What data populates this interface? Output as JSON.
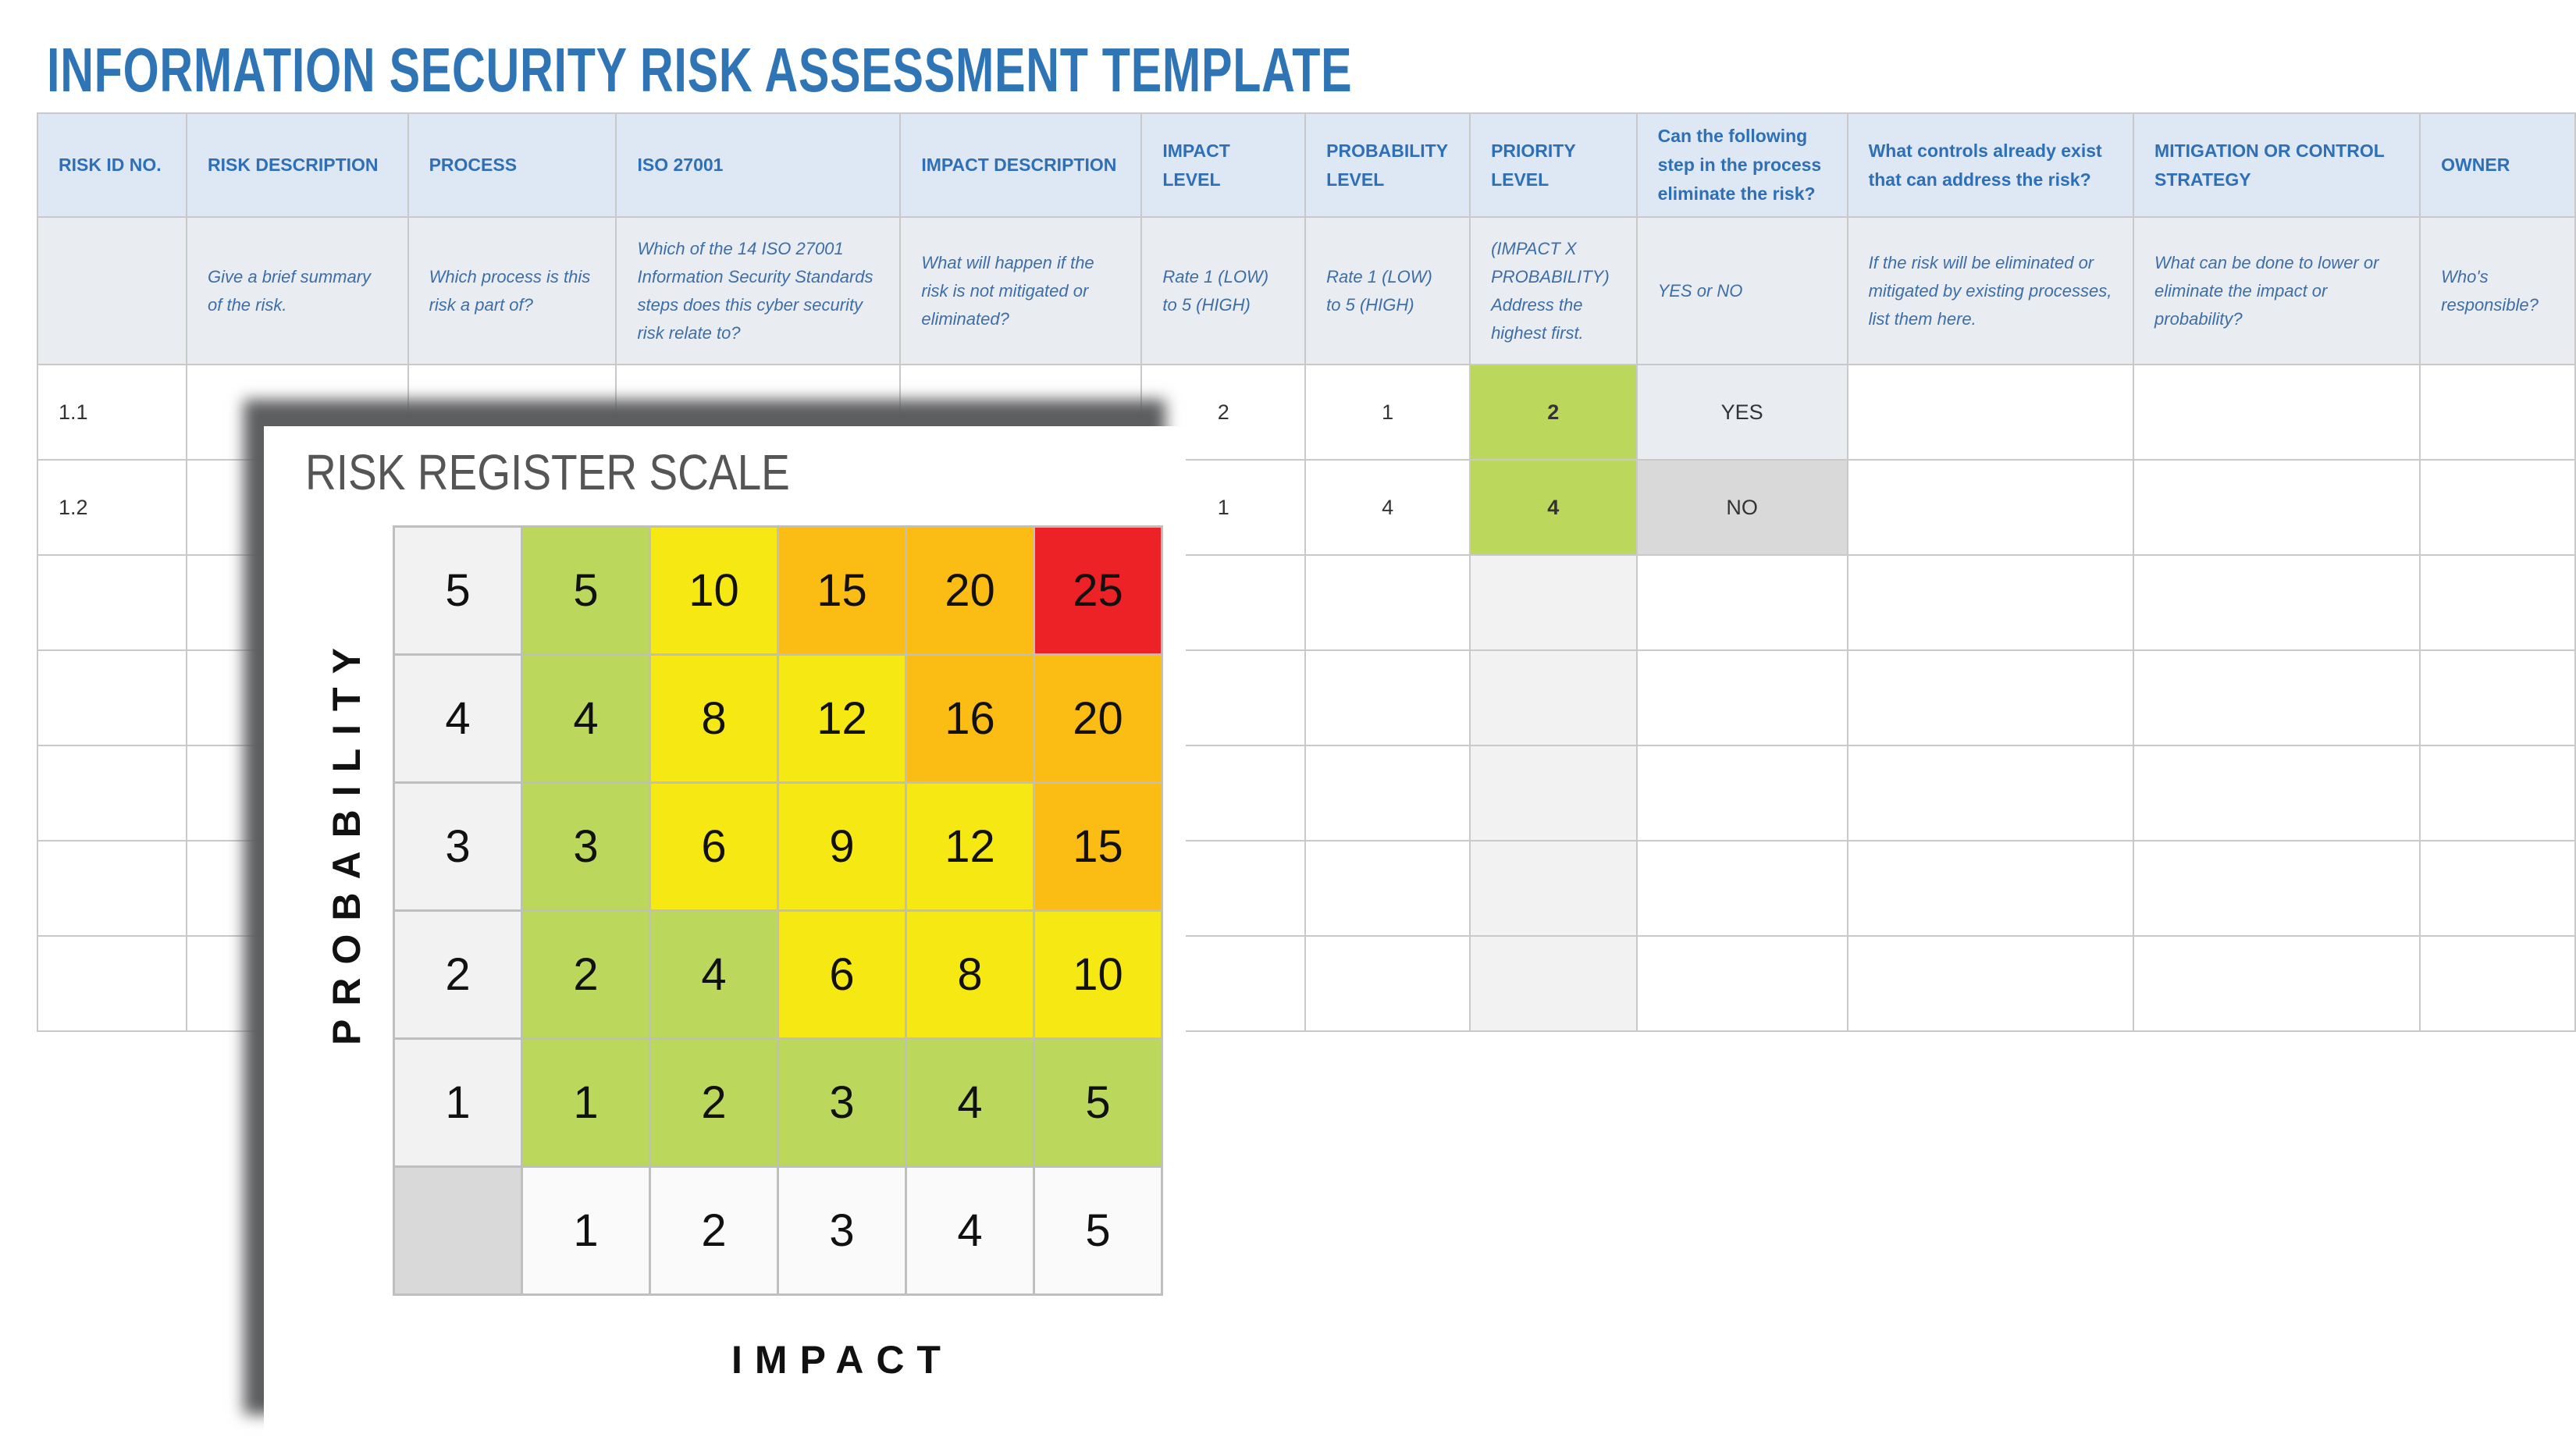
{
  "title": "INFORMATION SECURITY RISK ASSESSMENT TEMPLATE",
  "table": {
    "columns": [
      {
        "header": "RISK ID NO.",
        "hint": ""
      },
      {
        "header": "RISK DESCRIPTION",
        "hint": "Give a brief summary of the risk."
      },
      {
        "header": "PROCESS",
        "hint": "Which process is this risk a part of?"
      },
      {
        "header": "ISO 27001",
        "hint": "Which of the 14 ISO 27001 Information Security Standards steps does this cyber security risk relate to?"
      },
      {
        "header": "IMPACT DESCRIPTION",
        "hint": "What will happen if the risk is not mitigated or eliminated?"
      },
      {
        "header": "IMPACT LEVEL",
        "hint": "Rate 1 (LOW) to 5 (HIGH)"
      },
      {
        "header": "PROBABILITY LEVEL",
        "hint": "Rate 1 (LOW) to 5 (HIGH)"
      },
      {
        "header": "PRIORITY LEVEL",
        "hint": "(IMPACT X PROBABILITY) Address the highest first."
      },
      {
        "header": "Can the following step in the process eliminate the risk?",
        "hint": "YES or NO"
      },
      {
        "header": "What controls already exist that can address the risk?",
        "hint": "If the risk will be eliminated or mitigated by existing processes, list them here."
      },
      {
        "header": "MITIGATION OR CONTROL STRATEGY",
        "hint": "What can be done to lower or eliminate the impact or probability?"
      },
      {
        "header": "OWNER",
        "hint": "Who's responsible?"
      }
    ],
    "rows": [
      [
        "1.1",
        "",
        "",
        "",
        "",
        "2",
        "1",
        "2",
        "YES",
        "",
        "",
        ""
      ],
      [
        "1.2",
        "",
        "",
        "",
        "",
        "1",
        "4",
        "4",
        "NO",
        "",
        "",
        ""
      ],
      [
        "",
        "",
        "",
        "",
        "",
        "",
        "",
        "",
        "",
        "",
        "",
        ""
      ],
      [
        "",
        "",
        "",
        "",
        "",
        "",
        "",
        "",
        "",
        "",
        "",
        ""
      ],
      [
        "",
        "",
        "",
        "",
        "",
        "",
        "",
        "",
        "",
        "",
        "",
        ""
      ],
      [
        "",
        "",
        "",
        "",
        "",
        "",
        "",
        "",
        "",
        "",
        "",
        ""
      ],
      [
        "",
        "",
        "",
        "",
        "",
        "",
        "",
        "",
        "",
        "",
        "",
        ""
      ]
    ]
  },
  "scale": {
    "title": "RISK REGISTER SCALE",
    "y_label": "PROBABILITY",
    "x_label": "IMPACT",
    "probability_levels": [
      "5",
      "4",
      "3",
      "2",
      "1"
    ],
    "impact_levels": [
      "1",
      "2",
      "3",
      "4",
      "5"
    ],
    "matrix": [
      [
        "5",
        "10",
        "15",
        "20",
        "25"
      ],
      [
        "4",
        "8",
        "12",
        "16",
        "20"
      ],
      [
        "3",
        "6",
        "9",
        "12",
        "15"
      ],
      [
        "2",
        "4",
        "6",
        "8",
        "10"
      ],
      [
        "1",
        "2",
        "3",
        "4",
        "5"
      ]
    ],
    "colors": {
      "low": "#bcd85c",
      "medium": "#f6e813",
      "high": "#fbbd13",
      "critical": "#ec2227"
    }
  }
}
